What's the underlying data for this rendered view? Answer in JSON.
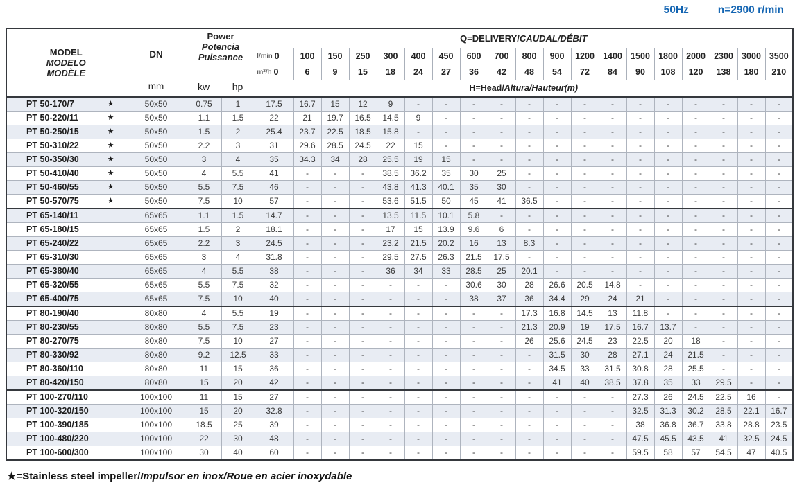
{
  "note": {
    "frequency": "50Hz",
    "speed": "n=2900 r/min",
    "color": "#1264b2"
  },
  "table": {
    "header": {
      "model": {
        "en": "MODEL",
        "es": "MODELO",
        "fr": "MODÈLE"
      },
      "dn": {
        "label": "DN",
        "unit": "mm"
      },
      "power": {
        "en": "Power",
        "es": "Potencia",
        "fr": "Puissance",
        "kw": "kw",
        "hp": "hp"
      },
      "q": {
        "title_en": "Q=DELIVERY/",
        "title_es_fr": "CAUDAL/DÉBIT",
        "lmin_label": "l/min",
        "m3h_label": "m³/h",
        "lmin_values": [
          "0",
          "100",
          "150",
          "250",
          "300",
          "400",
          "450",
          "600",
          "700",
          "800",
          "900",
          "1200",
          "1400",
          "1500",
          "1800",
          "2000",
          "2300",
          "3000",
          "3500"
        ],
        "m3h_values": [
          "0",
          "6",
          "9",
          "15",
          "18",
          "24",
          "27",
          "36",
          "42",
          "48",
          "54",
          "72",
          "84",
          "90",
          "108",
          "120",
          "138",
          "180",
          "210"
        ],
        "head_label_en": "H=Head/",
        "head_label_es_fr": "Altura/Hauteur(m)"
      }
    },
    "groups": [
      {
        "name": "PT 50",
        "rows": [
          {
            "model": "PT 50-170/7",
            "star": true,
            "dn": "50x50",
            "kw": "0.75",
            "hp": "1",
            "heads": [
              "17.5",
              "16.7",
              "15",
              "12",
              "9",
              "-",
              "-",
              "-",
              "-",
              "-",
              "-",
              "-",
              "-",
              "-",
              "-",
              "-",
              "-",
              "-",
              "-"
            ]
          },
          {
            "model": "PT 50-220/11",
            "star": true,
            "dn": "50x50",
            "kw": "1.1",
            "hp": "1.5",
            "heads": [
              "22",
              "21",
              "19.7",
              "16.5",
              "14.5",
              "9",
              "-",
              "-",
              "-",
              "-",
              "-",
              "-",
              "-",
              "-",
              "-",
              "-",
              "-",
              "-",
              "-"
            ]
          },
          {
            "model": "PT 50-250/15",
            "star": true,
            "dn": "50x50",
            "kw": "1.5",
            "hp": "2",
            "heads": [
              "25.4",
              "23.7",
              "22.5",
              "18.5",
              "15.8",
              "-",
              "-",
              "-",
              "-",
              "-",
              "-",
              "-",
              "-",
              "-",
              "-",
              "-",
              "-",
              "-",
              "-"
            ]
          },
          {
            "model": "PT 50-310/22",
            "star": true,
            "dn": "50x50",
            "kw": "2.2",
            "hp": "3",
            "heads": [
              "31",
              "29.6",
              "28.5",
              "24.5",
              "22",
              "15",
              "-",
              "-",
              "-",
              "-",
              "-",
              "-",
              "-",
              "-",
              "-",
              "-",
              "-",
              "-",
              "-"
            ]
          },
          {
            "model": "PT 50-350/30",
            "star": true,
            "dn": "50x50",
            "kw": "3",
            "hp": "4",
            "heads": [
              "35",
              "34.3",
              "34",
              "28",
              "25.5",
              "19",
              "15",
              "-",
              "-",
              "-",
              "-",
              "-",
              "-",
              "-",
              "-",
              "-",
              "-",
              "-",
              "-"
            ]
          },
          {
            "model": "PT 50-410/40",
            "star": true,
            "dn": "50x50",
            "kw": "4",
            "hp": "5.5",
            "heads": [
              "41",
              "-",
              "-",
              "-",
              "38.5",
              "36.2",
              "35",
              "30",
              "25",
              "-",
              "-",
              "-",
              "-",
              "-",
              "-",
              "-",
              "-",
              "-",
              "-"
            ]
          },
          {
            "model": "PT 50-460/55",
            "star": true,
            "dn": "50x50",
            "kw": "5.5",
            "hp": "7.5",
            "heads": [
              "46",
              "-",
              "-",
              "-",
              "43.8",
              "41.3",
              "40.1",
              "35",
              "30",
              "-",
              "-",
              "-",
              "-",
              "-",
              "-",
              "-",
              "-",
              "-",
              "-"
            ]
          },
          {
            "model": "PT 50-570/75",
            "star": true,
            "dn": "50x50",
            "kw": "7.5",
            "hp": "10",
            "heads": [
              "57",
              "-",
              "-",
              "-",
              "53.6",
              "51.5",
              "50",
              "45",
              "41",
              "36.5",
              "-",
              "-",
              "-",
              "-",
              "-",
              "-",
              "-",
              "-",
              "-"
            ]
          }
        ]
      },
      {
        "name": "PT 65",
        "rows": [
          {
            "model": "PT 65-140/11",
            "star": false,
            "dn": "65x65",
            "kw": "1.1",
            "hp": "1.5",
            "heads": [
              "14.7",
              "-",
              "-",
              "-",
              "13.5",
              "11.5",
              "10.1",
              "5.8",
              "-",
              "-",
              "-",
              "-",
              "-",
              "-",
              "-",
              "-",
              "-",
              "-",
              "-"
            ]
          },
          {
            "model": "PT 65-180/15",
            "star": false,
            "dn": "65x65",
            "kw": "1.5",
            "hp": "2",
            "heads": [
              "18.1",
              "-",
              "-",
              "-",
              "17",
              "15",
              "13.9",
              "9.6",
              "6",
              "-",
              "-",
              "-",
              "-",
              "-",
              "-",
              "-",
              "-",
              "-",
              "-"
            ]
          },
          {
            "model": "PT 65-240/22",
            "star": false,
            "dn": "65x65",
            "kw": "2.2",
            "hp": "3",
            "heads": [
              "24.5",
              "-",
              "-",
              "-",
              "23.2",
              "21.5",
              "20.2",
              "16",
              "13",
              "8.3",
              "-",
              "-",
              "-",
              "-",
              "-",
              "-",
              "-",
              "-",
              "-"
            ]
          },
          {
            "model": "PT 65-310/30",
            "star": false,
            "dn": "65x65",
            "kw": "3",
            "hp": "4",
            "heads": [
              "31.8",
              "-",
              "-",
              "-",
              "29.5",
              "27.5",
              "26.3",
              "21.5",
              "17.5",
              "-",
              "-",
              "-",
              "-",
              "-",
              "-",
              "-",
              "-",
              "-",
              "-"
            ]
          },
          {
            "model": "PT 65-380/40",
            "star": false,
            "dn": "65x65",
            "kw": "4",
            "hp": "5.5",
            "heads": [
              "38",
              "-",
              "-",
              "-",
              "36",
              "34",
              "33",
              "28.5",
              "25",
              "20.1",
              "-",
              "-",
              "-",
              "-",
              "-",
              "-",
              "-",
              "-",
              "-"
            ]
          },
          {
            "model": "PT 65-320/55",
            "star": false,
            "dn": "65x65",
            "kw": "5.5",
            "hp": "7.5",
            "heads": [
              "32",
              "-",
              "-",
              "-",
              "-",
              "-",
              "-",
              "30.6",
              "30",
              "28",
              "26.6",
              "20.5",
              "14.8",
              "-",
              "-",
              "-",
              "-",
              "-",
              "-"
            ]
          },
          {
            "model": "PT 65-400/75",
            "star": false,
            "dn": "65x65",
            "kw": "7.5",
            "hp": "10",
            "heads": [
              "40",
              "-",
              "-",
              "-",
              "-",
              "-",
              "-",
              "38",
              "37",
              "36",
              "34.4",
              "29",
              "24",
              "21",
              "-",
              "-",
              "-",
              "-",
              "-"
            ]
          }
        ]
      },
      {
        "name": "PT 80",
        "rows": [
          {
            "model": "PT 80-190/40",
            "star": false,
            "dn": "80x80",
            "kw": "4",
            "hp": "5.5",
            "heads": [
              "19",
              "-",
              "-",
              "-",
              "-",
              "-",
              "-",
              "-",
              "-",
              "17.3",
              "16.8",
              "14.5",
              "13",
              "11.8",
              "-",
              "-",
              "-",
              "-",
              "-"
            ]
          },
          {
            "model": "PT 80-230/55",
            "star": false,
            "dn": "80x80",
            "kw": "5.5",
            "hp": "7.5",
            "heads": [
              "23",
              "-",
              "-",
              "-",
              "-",
              "-",
              "-",
              "-",
              "-",
              "21.3",
              "20.9",
              "19",
              "17.5",
              "16.7",
              "13.7",
              "-",
              "-",
              "-",
              "-"
            ]
          },
          {
            "model": "PT 80-270/75",
            "star": false,
            "dn": "80x80",
            "kw": "7.5",
            "hp": "10",
            "heads": [
              "27",
              "-",
              "-",
              "-",
              "-",
              "-",
              "-",
              "-",
              "-",
              "26",
              "25.6",
              "24.5",
              "23",
              "22.5",
              "20",
              "18",
              "-",
              "-",
              "-"
            ]
          },
          {
            "model": "PT 80-330/92",
            "star": false,
            "dn": "80x80",
            "kw": "9.2",
            "hp": "12.5",
            "heads": [
              "33",
              "-",
              "-",
              "-",
              "-",
              "-",
              "-",
              "-",
              "-",
              "-",
              "31.5",
              "30",
              "28",
              "27.1",
              "24",
              "21.5",
              "-",
              "-",
              "-"
            ]
          },
          {
            "model": "PT 80-360/110",
            "star": false,
            "dn": "80x80",
            "kw": "11",
            "hp": "15",
            "heads": [
              "36",
              "-",
              "-",
              "-",
              "-",
              "-",
              "-",
              "-",
              "-",
              "-",
              "34.5",
              "33",
              "31.5",
              "30.8",
              "28",
              "25.5",
              "-",
              "-",
              "-"
            ]
          },
          {
            "model": "PT 80-420/150",
            "star": false,
            "dn": "80x80",
            "kw": "15",
            "hp": "20",
            "heads": [
              "42",
              "-",
              "-",
              "-",
              "-",
              "-",
              "-",
              "-",
              "-",
              "-",
              "41",
              "40",
              "38.5",
              "37.8",
              "35",
              "33",
              "29.5",
              "-",
              "-"
            ]
          }
        ]
      },
      {
        "name": "PT 100",
        "rows": [
          {
            "model": "PT 100-270/110",
            "star": false,
            "dn": "100x100",
            "kw": "11",
            "hp": "15",
            "heads": [
              "27",
              "-",
              "-",
              "-",
              "-",
              "-",
              "-",
              "-",
              "-",
              "-",
              "-",
              "-",
              "-",
              "27.3",
              "26",
              "24.5",
              "22.5",
              "16",
              "-"
            ]
          },
          {
            "model": "PT 100-320/150",
            "star": false,
            "dn": "100x100",
            "kw": "15",
            "hp": "20",
            "heads": [
              "32.8",
              "-",
              "-",
              "-",
              "-",
              "-",
              "-",
              "-",
              "-",
              "-",
              "-",
              "-",
              "-",
              "32.5",
              "31.3",
              "30.2",
              "28.5",
              "22.1",
              "16.7"
            ]
          },
          {
            "model": "PT 100-390/185",
            "star": false,
            "dn": "100x100",
            "kw": "18.5",
            "hp": "25",
            "heads": [
              "39",
              "-",
              "-",
              "-",
              "-",
              "-",
              "-",
              "-",
              "-",
              "-",
              "-",
              "-",
              "-",
              "38",
              "36.8",
              "36.7",
              "33.8",
              "28.8",
              "23.5"
            ]
          },
          {
            "model": "PT 100-480/220",
            "star": false,
            "dn": "100x100",
            "kw": "22",
            "hp": "30",
            "heads": [
              "48",
              "-",
              "-",
              "-",
              "-",
              "-",
              "-",
              "-",
              "-",
              "-",
              "-",
              "-",
              "-",
              "47.5",
              "45.5",
              "43.5",
              "41",
              "32.5",
              "24.5"
            ]
          },
          {
            "model": "PT 100-600/300",
            "star": false,
            "dn": "100x100",
            "kw": "30",
            "hp": "40",
            "heads": [
              "60",
              "-",
              "-",
              "-",
              "-",
              "-",
              "-",
              "-",
              "-",
              "-",
              "-",
              "-",
              "-",
              "59.5",
              "58",
              "57",
              "54.5",
              "47",
              "40.5"
            ]
          }
        ]
      }
    ]
  },
  "footnote": {
    "en": "★=Stainless steel impeller/",
    "es_fr": "Impulsor en inox/Roue en acier inoxydable"
  }
}
